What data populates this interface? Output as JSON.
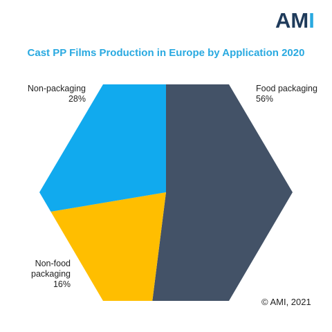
{
  "logo": {
    "part1": "AM",
    "part2": "I"
  },
  "colors": {
    "food_packaging": "#435267",
    "non_packaging": "#11aaee",
    "non_food_packaging": "#ffbe00",
    "title": "#29a9e0"
  },
  "chart_data": {
    "type": "pie",
    "shape": "hexagon",
    "title": "Cast PP Films Production in Europe by Application 2020",
    "slices": [
      {
        "label": "Food packaging",
        "value": 56,
        "value_label": "56%"
      },
      {
        "label": "Non-food packaging",
        "value": 16,
        "value_label": "16%"
      },
      {
        "label": "Non-packaging",
        "value": 28,
        "value_label": "28%"
      }
    ]
  },
  "labels": {
    "food": {
      "name": "Food packaging",
      "pct": "56%"
    },
    "non_packaging": {
      "name": "Non-packaging",
      "pct": "28%"
    },
    "non_food": {
      "line1": "Non-food",
      "line2": "packaging",
      "pct": "16%"
    }
  },
  "copyright": "© AMI, 2021"
}
